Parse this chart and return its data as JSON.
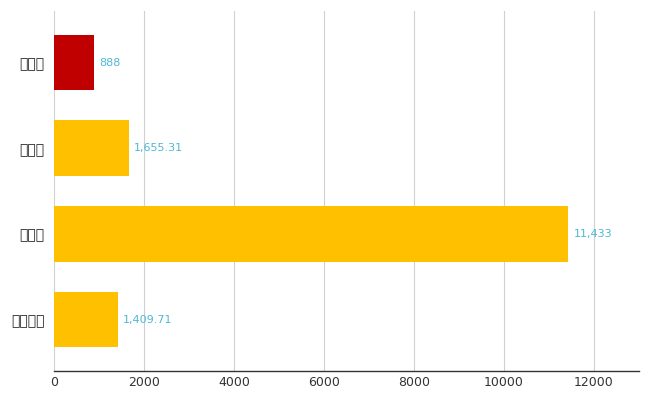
{
  "categories": [
    "裾野市",
    "県平均",
    "県最大",
    "全国平均"
  ],
  "values": [
    888,
    1655.31,
    11433,
    1409.71
  ],
  "bar_colors": [
    "#C00000",
    "#FFC000",
    "#FFC000",
    "#FFC000"
  ],
  "bar_labels": [
    "888",
    "1,655.31",
    "11,433",
    "1,409.71"
  ],
  "xlim": [
    0,
    13000
  ],
  "xticks": [
    0,
    2000,
    4000,
    6000,
    8000,
    10000,
    12000
  ],
  "xtick_labels": [
    "0",
    "2000",
    "4000",
    "6000",
    "8000",
    "10000",
    "12000"
  ],
  "background_color": "#ffffff",
  "grid_color": "#d0d0d0",
  "label_color": "#4DB8D4",
  "bar_height": 0.65
}
